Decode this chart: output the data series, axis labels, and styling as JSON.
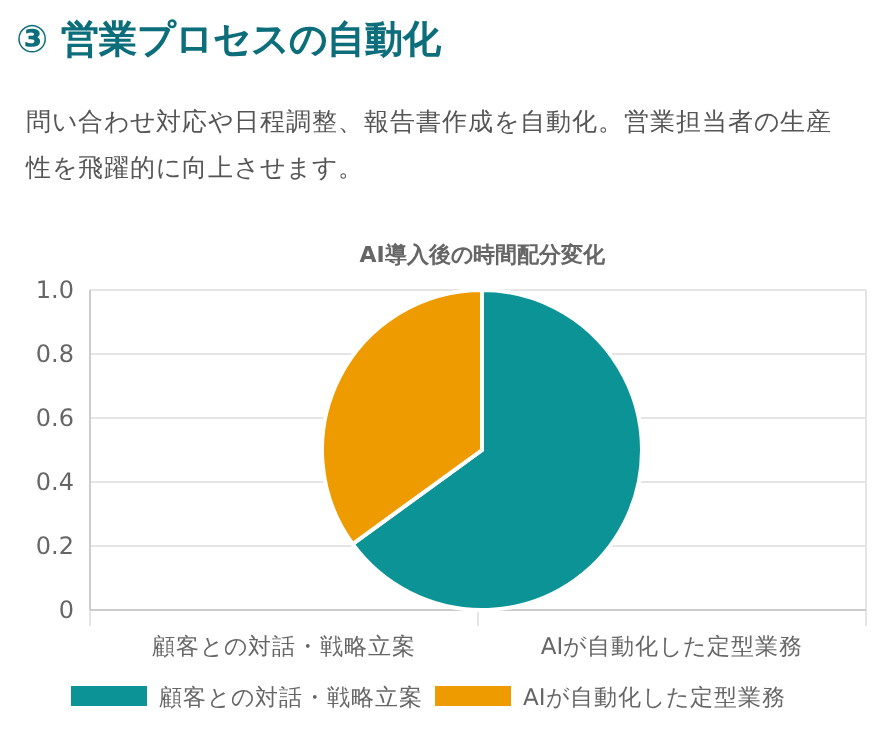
{
  "chart_data": [
    {
      "type": "pie",
      "title": "③ 営業プロセスの自動化",
      "subtitle": "問い合わせ対応や日程調整、報告書作成を自動化。営業担当者の生産性を飛躍的に向上させます。",
      "annotations": [
        "AI導入後の時間配分変化"
      ],
      "categories": [
        "顧客との対話・戦略立案",
        "AIが自動化した定型業務"
      ],
      "values": [
        65,
        35
      ],
      "colors": [
        "#0b9396",
        "#ee9b00"
      ],
      "legend": "bottom"
    },
    {
      "type": "bar",
      "categories": [
        "顧客との対話・戦略立案",
        "AIが自動化した定型業務"
      ],
      "values": [
        null,
        null
      ],
      "ylim": [
        0,
        1
      ],
      "yticks": [
        0,
        0.2,
        0.4,
        0.6,
        0.8,
        {
          "value": 1,
          "label": "1.0"
        }
      ],
      "grid": true
    }
  ]
}
